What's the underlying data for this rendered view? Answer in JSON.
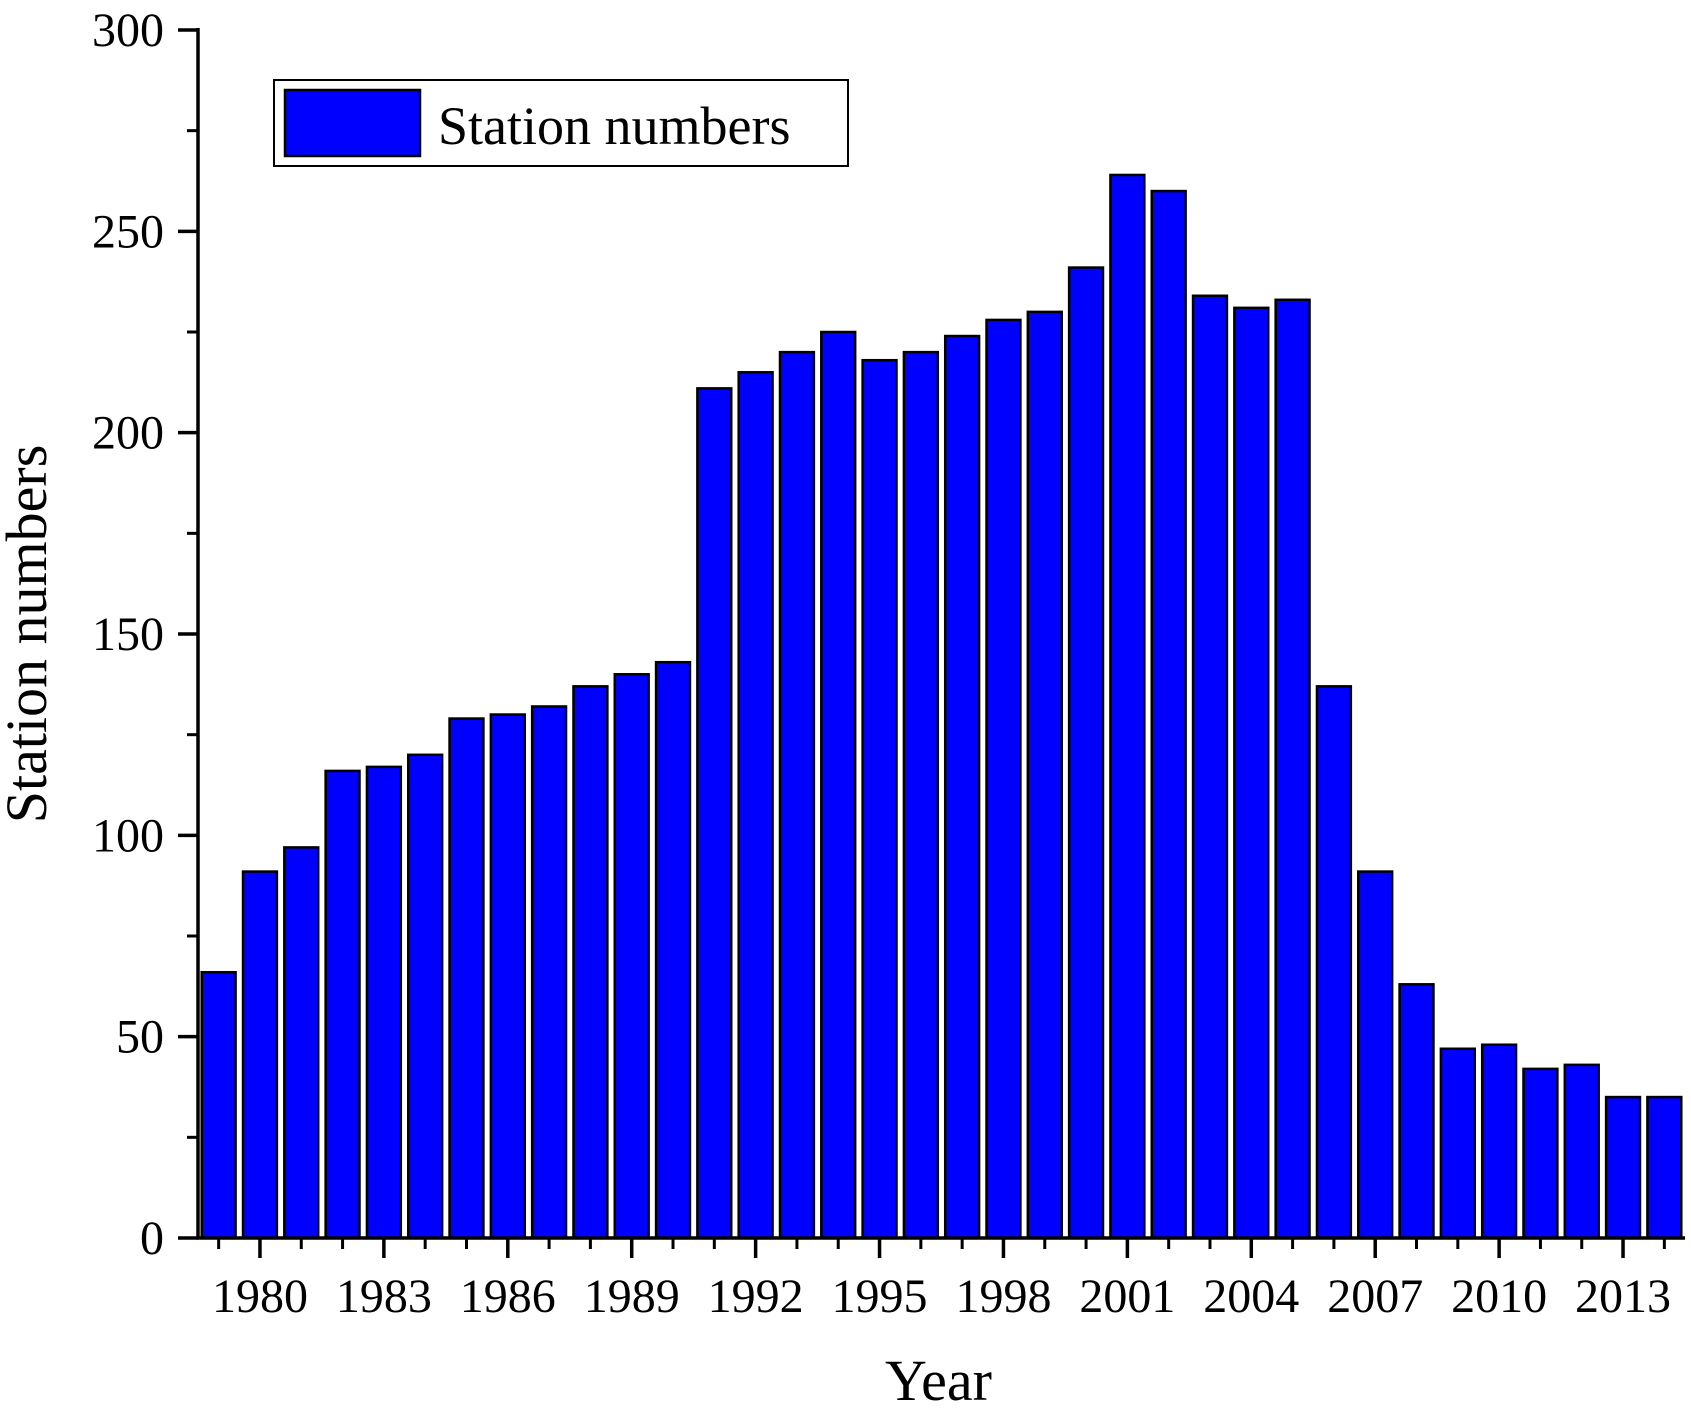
{
  "chart_data": {
    "type": "bar",
    "title": "",
    "xlabel": "Year",
    "ylabel": "Station numbers",
    "ylim": [
      0,
      300
    ],
    "y_ticks": [
      0,
      50,
      100,
      150,
      200,
      250,
      300
    ],
    "x_tick_labels": [
      "1980",
      "1983",
      "1986",
      "1989",
      "1992",
      "1995",
      "1998",
      "2001",
      "2004",
      "2007",
      "2010",
      "2013"
    ],
    "legend": {
      "placement": "top-left"
    },
    "colors": {
      "bar_fill": "#0000ff",
      "bar_stroke": "#000000"
    },
    "categories": [
      1979,
      1980,
      1981,
      1982,
      1983,
      1984,
      1985,
      1986,
      1987,
      1988,
      1989,
      1990,
      1991,
      1992,
      1993,
      1994,
      1995,
      1996,
      1997,
      1998,
      1999,
      2000,
      2001,
      2002,
      2003,
      2004,
      2005,
      2006,
      2007,
      2008,
      2009,
      2010,
      2011,
      2012,
      2013,
      2014
    ],
    "series": [
      {
        "name": "Station numbers",
        "values": [
          66,
          91,
          97,
          116,
          117,
          120,
          129,
          130,
          132,
          137,
          140,
          143,
          211,
          215,
          220,
          225,
          218,
          220,
          224,
          228,
          230,
          241,
          264,
          260,
          234,
          231,
          233,
          137,
          91,
          63,
          47,
          48,
          42,
          43,
          35,
          35
        ]
      }
    ]
  }
}
